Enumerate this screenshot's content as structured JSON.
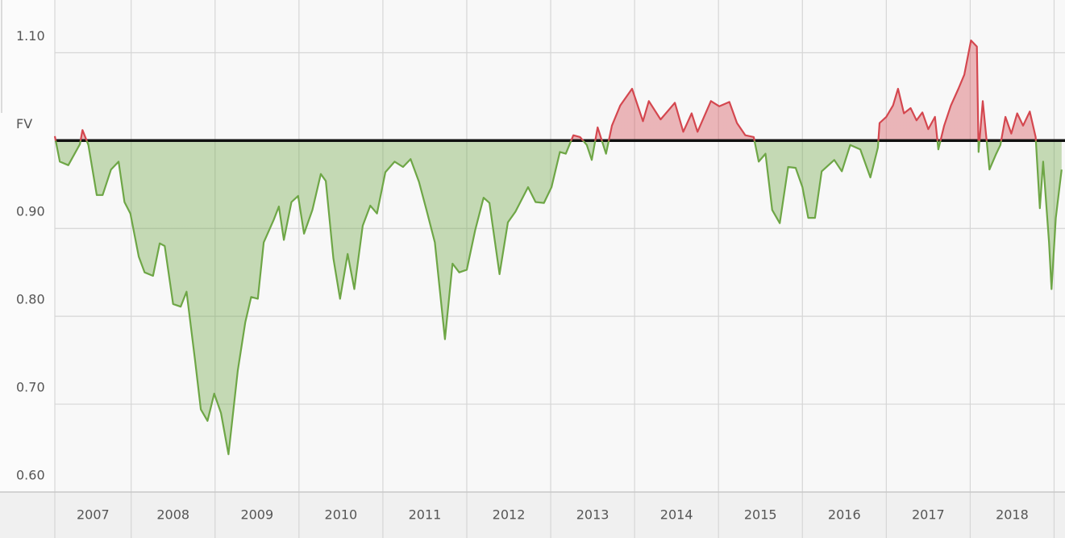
{
  "chart_data": {
    "type": "area",
    "x": [
      2007.09,
      2007.15,
      2007.25,
      2007.39,
      2007.42,
      2007.49,
      2007.59,
      2007.66,
      2007.76,
      2007.85,
      2007.92,
      2007.99,
      2008.09,
      2008.16,
      2008.26,
      2008.34,
      2008.4,
      2008.5,
      2008.59,
      2008.66,
      2008.76,
      2008.83,
      2008.91,
      2008.99,
      2009.07,
      2009.16,
      2009.27,
      2009.36,
      2009.43,
      2009.51,
      2009.58,
      2009.7,
      2009.76,
      2009.82,
      2009.91,
      2009.99,
      2010.06,
      2010.16,
      2010.26,
      2010.32,
      2010.41,
      2010.49,
      2010.58,
      2010.66,
      2010.76,
      2010.85,
      2010.93,
      2011.03,
      2011.14,
      2011.24,
      2011.33,
      2011.43,
      2011.52,
      2011.62,
      2011.74,
      2011.83,
      2011.91,
      2012.0,
      2012.1,
      2012.2,
      2012.27,
      2012.39,
      2012.49,
      2012.58,
      2012.73,
      2012.82,
      2012.92,
      2013.01,
      2013.11,
      2013.18,
      2013.27,
      2013.35,
      2013.43,
      2013.49,
      2013.56,
      2013.66,
      2013.73,
      2013.83,
      2013.97,
      2014.1,
      2014.17,
      2014.31,
      2014.48,
      2014.58,
      2014.68,
      2014.75,
      2014.91,
      2015.01,
      2015.13,
      2015.22,
      2015.32,
      2015.42,
      2015.48,
      2015.56,
      2015.64,
      2015.73,
      2015.83,
      2015.92,
      2016.0,
      2016.07,
      2016.15,
      2016.23,
      2016.38,
      2016.47,
      2016.57,
      2016.69,
      2016.81,
      2016.9,
      2016.92,
      2017.0,
      2017.08,
      2017.14,
      2017.21,
      2017.29,
      2017.36,
      2017.43,
      2017.5,
      2017.58,
      2017.62,
      2017.69,
      2017.77,
      2017.86,
      2017.93,
      2018.01,
      2018.08,
      2018.1,
      2018.15,
      2018.23,
      2018.31,
      2018.36,
      2018.42,
      2018.49,
      2018.56,
      2018.63,
      2018.71,
      2018.78,
      2018.83,
      2018.87,
      2018.94,
      2018.97,
      2019.02,
      2019.09
    ],
    "values": [
      1.005,
      0.976,
      0.972,
      0.996,
      1.012,
      0.995,
      0.938,
      0.938,
      0.967,
      0.976,
      0.93,
      0.917,
      0.868,
      0.85,
      0.846,
      0.883,
      0.88,
      0.814,
      0.811,
      0.828,
      0.751,
      0.694,
      0.681,
      0.712,
      0.69,
      0.643,
      0.738,
      0.793,
      0.822,
      0.82,
      0.884,
      0.91,
      0.925,
      0.887,
      0.93,
      0.937,
      0.894,
      0.921,
      0.962,
      0.954,
      0.866,
      0.82,
      0.871,
      0.831,
      0.903,
      0.926,
      0.917,
      0.964,
      0.976,
      0.97,
      0.979,
      0.953,
      0.921,
      0.884,
      0.774,
      0.86,
      0.85,
      0.853,
      0.898,
      0.935,
      0.929,
      0.848,
      0.907,
      0.919,
      0.947,
      0.93,
      0.929,
      0.947,
      0.987,
      0.985,
      1.006,
      1.004,
      0.995,
      0.978,
      1.015,
      0.985,
      1.017,
      1.04,
      1.059,
      1.022,
      1.045,
      1.024,
      1.043,
      1.01,
      1.031,
      1.01,
      1.045,
      1.039,
      1.044,
      1.02,
      1.006,
      1.004,
      0.976,
      0.985,
      0.921,
      0.906,
      0.97,
      0.969,
      0.947,
      0.912,
      0.912,
      0.965,
      0.978,
      0.965,
      0.995,
      0.99,
      0.958,
      0.992,
      1.02,
      1.027,
      1.04,
      1.059,
      1.031,
      1.037,
      1.023,
      1.032,
      1.013,
      1.027,
      0.99,
      1.017,
      1.04,
      1.059,
      1.075,
      1.114,
      1.107,
      0.987,
      1.045,
      0.967,
      0.985,
      0.995,
      1.027,
      1.008,
      1.031,
      1.017,
      1.033,
      1.004,
      0.923,
      0.976,
      0.884,
      0.831,
      0.912,
      0.967
    ],
    "reference": 1,
    "reference_color": "#111111",
    "above_color": "#d4474f",
    "below_color": "#6ea646",
    "xlim": [
      2007.09,
      2019.13
    ],
    "ylim": [
      0.6,
      1.16
    ],
    "yticks": [
      {
        "value": 0.6,
        "label": "0.60"
      },
      {
        "value": 0.7,
        "label": "0.70"
      },
      {
        "value": 0.8,
        "label": "0.80"
      },
      {
        "value": 0.9,
        "label": "0.90"
      },
      {
        "value": 1,
        "label": "FV"
      },
      {
        "value": 1.1,
        "label": "1.10"
      }
    ],
    "xticks": [
      {
        "value": 2007.5,
        "label": "2007"
      },
      {
        "value": 2008.5,
        "label": "2008"
      },
      {
        "value": 2009.5,
        "label": "2009"
      },
      {
        "value": 2010.5,
        "label": "2010"
      },
      {
        "value": 2011.5,
        "label": "2011"
      },
      {
        "value": 2012.5,
        "label": "2012"
      },
      {
        "value": 2013.5,
        "label": "2013"
      },
      {
        "value": 2014.5,
        "label": "2014"
      },
      {
        "value": 2015.5,
        "label": "2015"
      },
      {
        "value": 2016.5,
        "label": "2016"
      },
      {
        "value": 2017.5,
        "label": "2017"
      },
      {
        "value": 2018.5,
        "label": "2018"
      }
    ],
    "xgrid": [
      2008,
      2009,
      2010,
      2011,
      2012,
      2013,
      2014,
      2015,
      2016,
      2017,
      2018,
      2019
    ],
    "grid": true
  }
}
